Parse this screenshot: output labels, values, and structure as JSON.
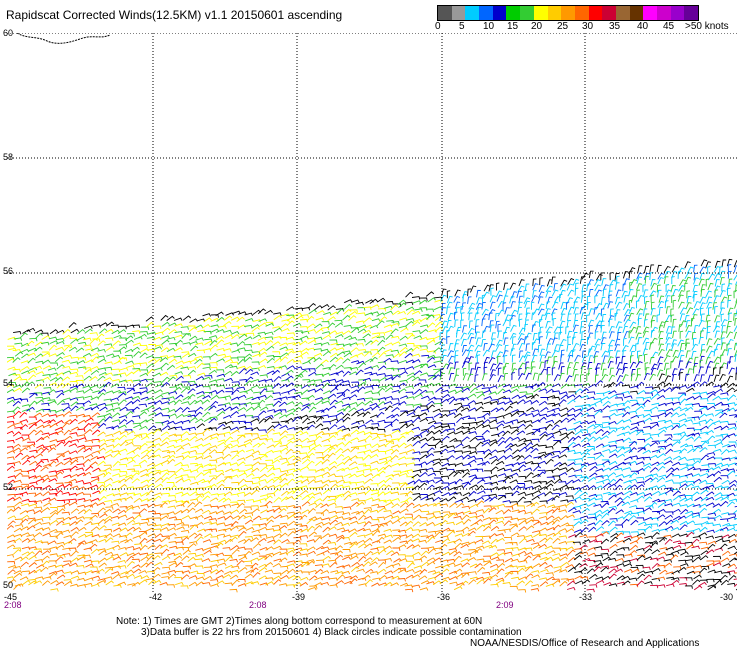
{
  "title": "Rapidscat Corrected Winds(12.5KM) v1.1 20150601 ascending",
  "colorbar": {
    "colors": [
      "#555555",
      "#999999",
      "#00ccff",
      "#0066ff",
      "#0000cc",
      "#00cc00",
      "#33cc33",
      "#ffff00",
      "#ffcc00",
      "#ff9900",
      "#ff6600",
      "#ff0000",
      "#cc0033",
      "#996633",
      "#663300",
      "#ff00ff",
      "#cc00cc",
      "#9900cc",
      "#660099"
    ],
    "tick_labels": [
      "0",
      "5",
      "10",
      "15",
      "20",
      "25",
      "30",
      "35",
      "40",
      "45",
      ">50 knots"
    ]
  },
  "latitude_labels": [
    "60",
    "58",
    "56",
    "54",
    "52",
    "50"
  ],
  "longitude_labels": [
    "-45",
    "-42",
    "-39",
    "-36",
    "-33",
    "-30"
  ],
  "time_labels": [
    "2:08",
    "2:08",
    "2:09"
  ],
  "notes": {
    "line1": "Note: 1) Times are GMT 2)Times along bottom correspond to measurement at 60N",
    "line2": "3)Data buffer is 22 hrs from 20150601 4) Black circles indicate possible contamination"
  },
  "credit": "NOAA/NESDIS/Office of Research and Applications"
}
